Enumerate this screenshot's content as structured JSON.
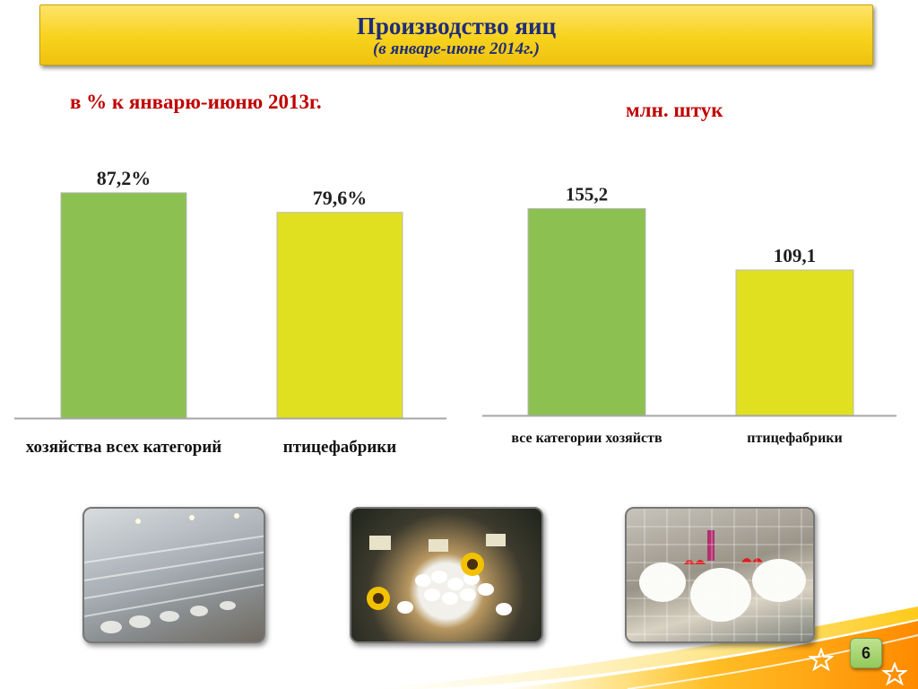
{
  "title": {
    "main": "Производство яиц",
    "sub": "(в январе-июне 2014г.)"
  },
  "captions": {
    "left": "в % к январю-июню 2013г.",
    "right": "млн. штук"
  },
  "chart_data": [
    {
      "type": "bar",
      "categories": [
        "хозяйства всех категорий",
        "птицефабрики"
      ],
      "values": [
        87.2,
        79.6
      ],
      "value_labels": [
        "87,2%",
        "79,6%"
      ],
      "colors": [
        "#8cc152",
        "#e0e021"
      ],
      "ylim": [
        0,
        100
      ],
      "title": "",
      "xlabel": "",
      "ylabel": ""
    },
    {
      "type": "bar",
      "categories": [
        "все категории хозяйств",
        "птицефабрики"
      ],
      "values": [
        155.2,
        109.1
      ],
      "value_labels": [
        "155,2",
        "109,1"
      ],
      "colors": [
        "#8cc152",
        "#e0e021"
      ],
      "ylim": [
        0,
        200
      ],
      "title": "",
      "xlabel": "",
      "ylabel": ""
    }
  ],
  "photos": [
    {
      "subject": "poultry-farm-cages-photo"
    },
    {
      "subject": "eggs-in-baskets-photo"
    },
    {
      "subject": "hens-in-cage-photo"
    }
  ],
  "page_number": "6",
  "icons": {
    "decor_left": "star-icon",
    "decor_right": "star-icon"
  }
}
